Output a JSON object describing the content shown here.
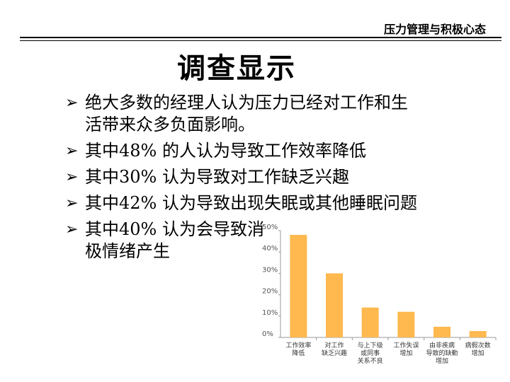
{
  "header": {
    "title": "压力管理与积极心态"
  },
  "slide": {
    "title": "调查显示",
    "bullets": [
      {
        "text": "绝大多数的经理人认为压力已经对工作和生活带来众多负面影响。"
      },
      {
        "text": "其中48% 的人认为导致工作效率降低"
      },
      {
        "text": "其中30% 认为导致对工作缺乏兴趣"
      },
      {
        "text": "其中42% 认为导致出现失眠或其他睡眠问题"
      },
      {
        "text": "其中40% 认为会导致消极情绪产生"
      }
    ]
  },
  "chart_data": {
    "type": "bar",
    "categories": [
      [
        "工作效率",
        "降低"
      ],
      [
        "对工作",
        "缺乏兴趣"
      ],
      [
        "与上下级",
        "或同事",
        "关系不良"
      ],
      [
        "工作失误",
        "增加"
      ],
      [
        "由非疾病",
        "导致的缺勤",
        "增加"
      ],
      [
        "病假次数",
        "增加"
      ]
    ],
    "values": [
      48,
      30,
      14,
      12,
      5,
      3
    ],
    "ylim": [
      0,
      50
    ],
    "yticks": [
      "0%",
      "10%",
      "20%",
      "30%",
      "40%",
      "50%"
    ],
    "bar_color": "#FFB94F",
    "grid": false
  }
}
